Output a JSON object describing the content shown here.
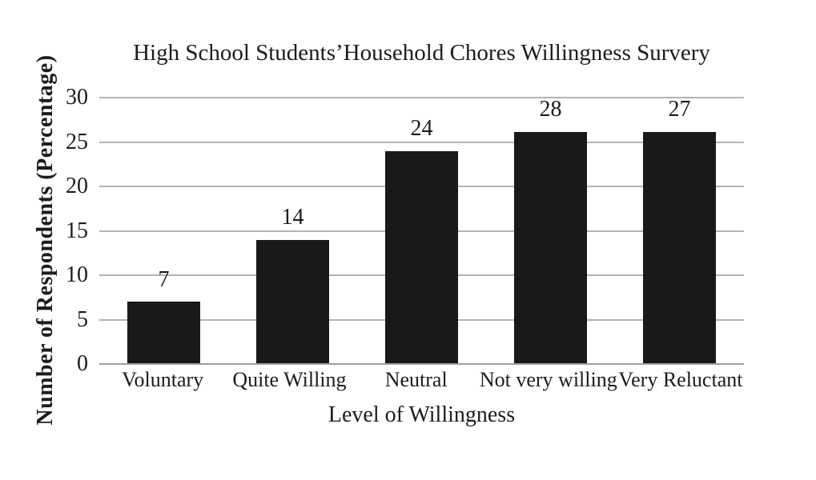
{
  "figure": {
    "background_color": "#ffffff",
    "bar_color": "#191919",
    "gridline_color": "#b3b3b3",
    "baseline_color": "#9e9e9e",
    "text_color": "#1c1c1c"
  },
  "chart_data": {
    "type": "bar",
    "title": "High School Students’Household Chores Willingness Survery",
    "xlabel": "Level of Willingness",
    "ylabel": "Number of Respondents (Percentage)",
    "categories": [
      "Voluntary",
      "Quite Willing",
      "Neutral",
      "Not very willing",
      "Very Reluctant"
    ],
    "values": [
      7,
      14,
      24,
      28,
      27
    ],
    "data_labels": [
      "7",
      "14",
      "24",
      "28",
      "27"
    ],
    "yticks": [
      30,
      25,
      20,
      15,
      10,
      5,
      0
    ],
    "ylim": [
      0,
      30
    ],
    "grid": "horizontal-gridlines-on",
    "legend_position": "none",
    "series_color": "black"
  }
}
